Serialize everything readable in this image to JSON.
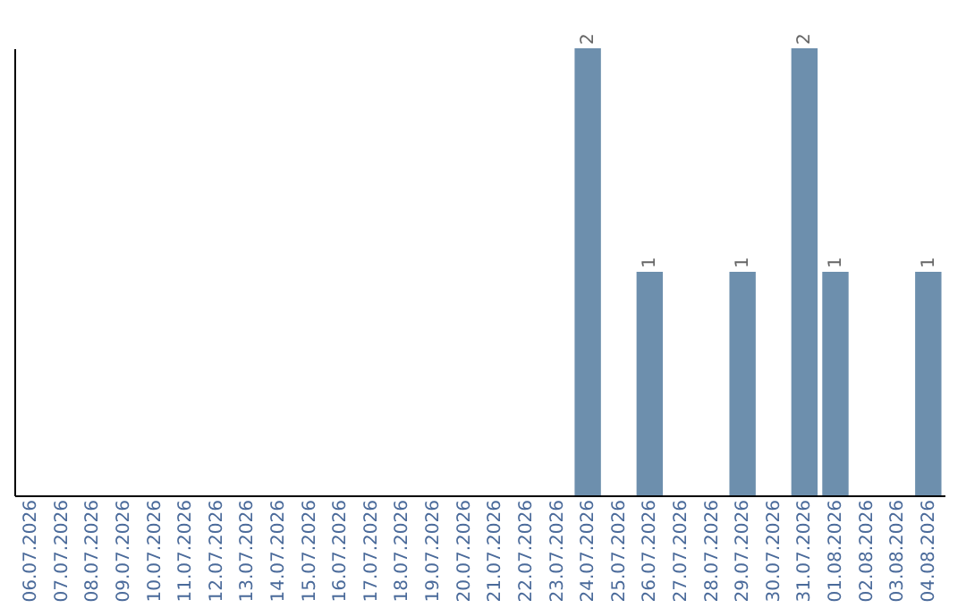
{
  "chart_data": {
    "type": "bar",
    "categories": [
      "06.07.2026",
      "07.07.2026",
      "08.07.2026",
      "09.07.2026",
      "10.07.2026",
      "11.07.2026",
      "12.07.2026",
      "13.07.2026",
      "14.07.2026",
      "15.07.2026",
      "16.07.2026",
      "17.07.2026",
      "18.07.2026",
      "19.07.2026",
      "20.07.2026",
      "21.07.2026",
      "22.07.2026",
      "23.07.2026",
      "24.07.2026",
      "25.07.2026",
      "26.07.2026",
      "27.07.2026",
      "28.07.2026",
      "29.07.2026",
      "30.07.2026",
      "31.07.2026",
      "01.08.2026",
      "02.08.2026",
      "03.08.2026",
      "04.08.2026"
    ],
    "values": [
      null,
      null,
      null,
      null,
      null,
      null,
      null,
      null,
      null,
      null,
      null,
      null,
      null,
      null,
      null,
      null,
      null,
      null,
      2,
      null,
      1,
      null,
      null,
      1,
      null,
      2,
      1,
      null,
      null,
      1
    ],
    "value_labels": [
      null,
      null,
      null,
      null,
      null,
      null,
      null,
      null,
      null,
      null,
      null,
      null,
      null,
      null,
      null,
      null,
      null,
      null,
      "2",
      null,
      "1",
      null,
      null,
      "1",
      null,
      "2",
      "1",
      null,
      null,
      "1"
    ],
    "color": "#6d8fad",
    "tick_labels": "x",
    "grid": false,
    "ylim": [
      0,
      2
    ]
  }
}
